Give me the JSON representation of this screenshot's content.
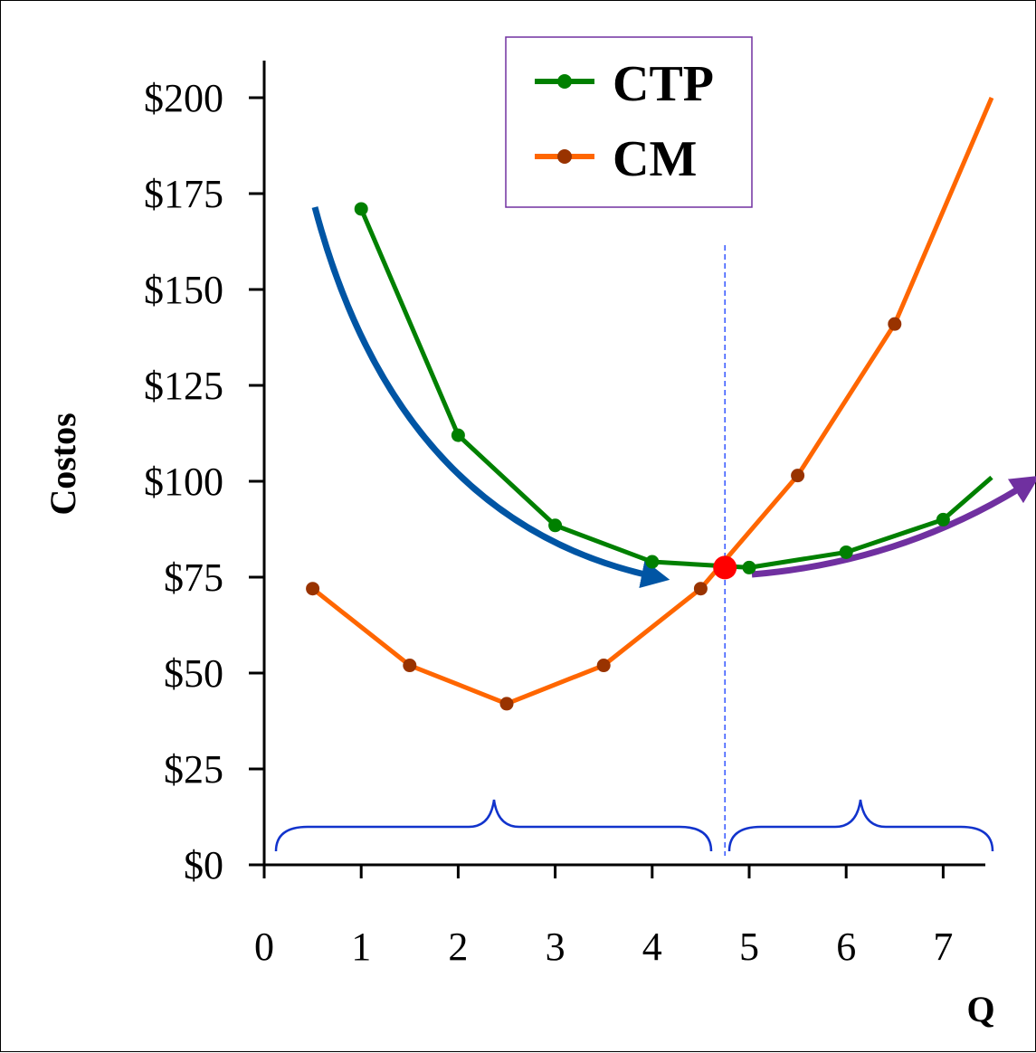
{
  "chart_data": {
    "type": "line",
    "title": "",
    "xlabel": "Q",
    "ylabel": "Costos",
    "xlim": [
      0,
      7.5
    ],
    "ylim": [
      0,
      210
    ],
    "x_ticks": [
      0,
      1,
      2,
      3,
      4,
      5,
      6,
      7
    ],
    "x_tick_labels": [
      "0",
      "1",
      "2",
      "3",
      "4",
      "5",
      "6",
      "7"
    ],
    "y_ticks": [
      0,
      25,
      50,
      75,
      100,
      125,
      150,
      175,
      200
    ],
    "y_tick_labels": [
      "$0",
      "$25",
      "$50",
      "$75",
      "$100",
      "$125",
      "$150",
      "$175",
      "$200"
    ],
    "grid": false,
    "legend_position": "top-center",
    "series": [
      {
        "name": "CTP",
        "color": "#008000",
        "marker_color": "#008000",
        "x": [
          1,
          2,
          3,
          4,
          5,
          6,
          7,
          7.5
        ],
        "y": [
          171,
          112,
          88.5,
          79,
          77.5,
          81.5,
          90,
          101
        ]
      },
      {
        "name": "CM",
        "color": "#FF6600",
        "marker_color": "#993300",
        "x": [
          0.5,
          1.5,
          2.5,
          3.5,
          4.5,
          5.5,
          6.5,
          7.5
        ],
        "y": [
          72,
          52,
          42,
          52,
          72,
          101.5,
          141,
          200
        ],
        "marker_x": [
          0.5,
          1.5,
          2.5,
          3.5,
          4.5,
          5.5,
          6.5
        ]
      }
    ],
    "annotations": {
      "intersection": {
        "x": 4.75,
        "y": 77.5,
        "color": "#FF0000"
      },
      "min_line_x": 4.75,
      "min_line_color": "#3355FF",
      "decreasing_arrow_color": "#0055A4",
      "increasing_arrow_color": "#7030A0",
      "brace_color": "#1133CC"
    }
  }
}
